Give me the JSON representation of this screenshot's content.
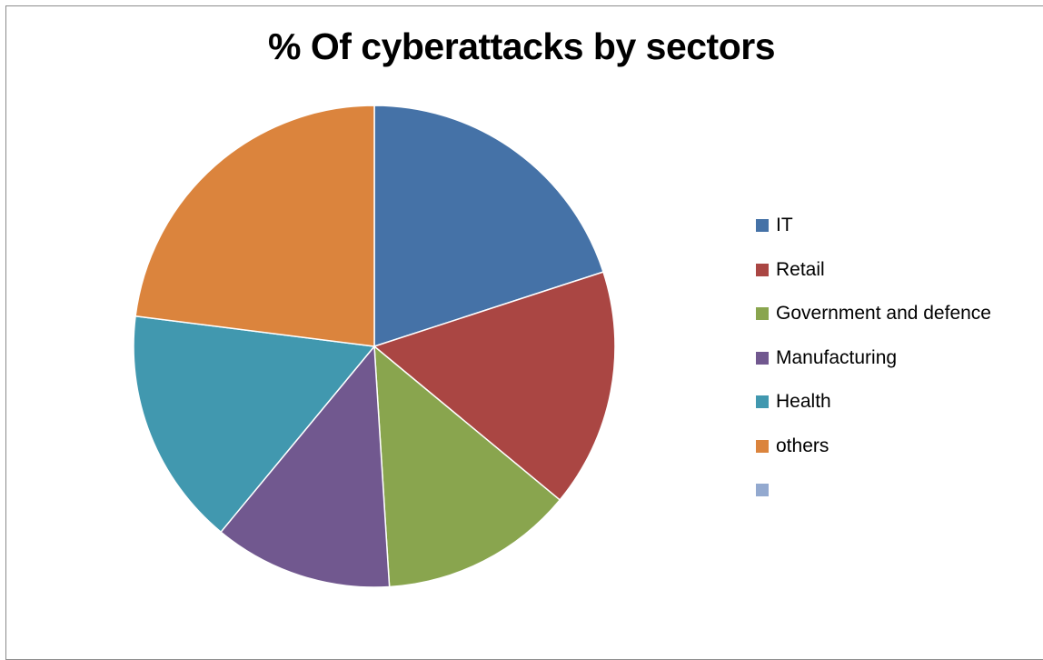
{
  "chart_data": {
    "type": "pie",
    "title": "% Of cyberattacks by sectors",
    "categories": [
      "IT",
      "Retail",
      "Government and defence",
      "Manufacturing",
      "Health",
      "others",
      ""
    ],
    "values": [
      20,
      16,
      13,
      12,
      16,
      23,
      0
    ],
    "colors": [
      "#4572A7",
      "#AA4643",
      "#89A54E",
      "#71588F",
      "#4198AF",
      "#DB843D",
      "#93A9CF"
    ],
    "legend_position": "right"
  }
}
